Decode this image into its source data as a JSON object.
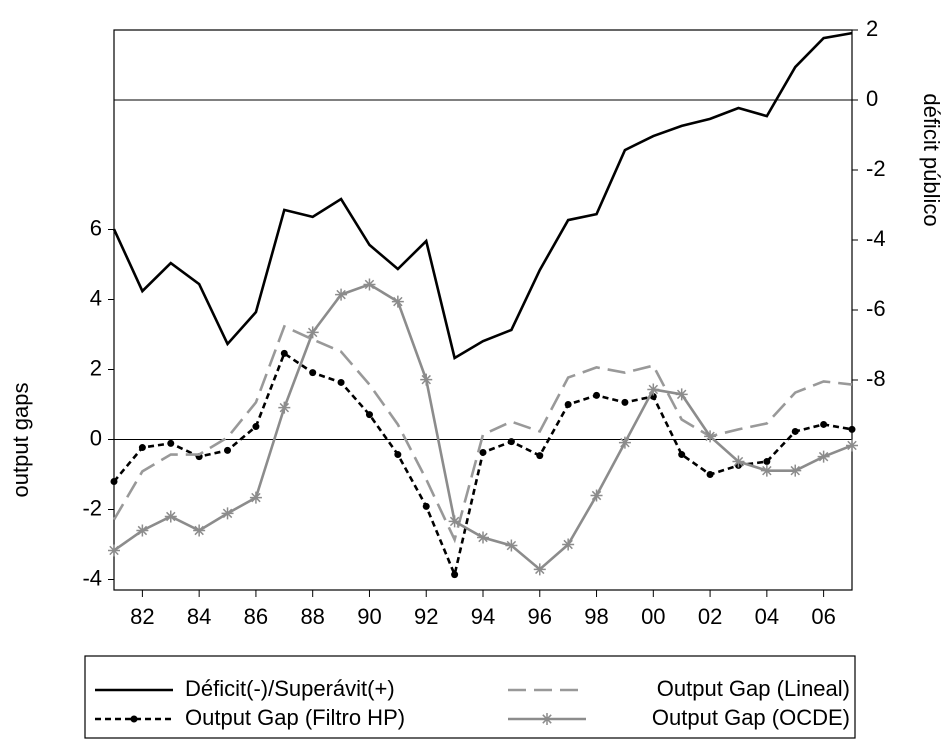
{
  "chart_data": {
    "type": "line",
    "x": [
      1981,
      1982,
      1983,
      1984,
      1985,
      1986,
      1987,
      1988,
      1989,
      1990,
      1991,
      1992,
      1993,
      1994,
      1995,
      1996,
      1997,
      1998,
      1999,
      2000,
      2001,
      2002,
      2003,
      2004,
      2005,
      2006,
      2007
    ],
    "xlim": [
      1981,
      2007
    ],
    "xticks": [
      {
        "value": 1982,
        "label": "82"
      },
      {
        "value": 1984,
        "label": "84"
      },
      {
        "value": 1986,
        "label": "86"
      },
      {
        "value": 1988,
        "label": "88"
      },
      {
        "value": 1990,
        "label": "90"
      },
      {
        "value": 1992,
        "label": "92"
      },
      {
        "value": 1994,
        "label": "94"
      },
      {
        "value": 1996,
        "label": "96"
      },
      {
        "value": 1998,
        "label": "98"
      },
      {
        "value": 2000,
        "label": "00"
      },
      {
        "value": 2002,
        "label": "02"
      },
      {
        "value": 2004,
        "label": "04"
      },
      {
        "value": 2006,
        "label": "06"
      }
    ],
    "ylabel": "output gaps",
    "ylim": [
      -4.3,
      11.7
    ],
    "yticks": [
      -4,
      -2,
      0,
      2,
      4,
      6
    ],
    "y2label": "déficit público",
    "y2lim": [
      -14,
      2
    ],
    "y2ticks": [
      -8,
      -6,
      -4,
      -2,
      0,
      2
    ],
    "zero_lines": true,
    "series": [
      {
        "name": "Déficit(-)/Superávit(+)",
        "color": "#000000",
        "dash": "solid",
        "axis": "y2",
        "values": [
          -3.69,
          -5.46,
          -4.66,
          -5.26,
          -6.97,
          -6.06,
          -3.14,
          -3.34,
          -2.83,
          -4.14,
          -4.83,
          -4.03,
          -7.37,
          -6.89,
          -6.57,
          -4.86,
          -3.43,
          -3.26,
          -1.43,
          -1.03,
          -0.74,
          -0.54,
          -0.23,
          -0.46,
          0.94,
          1.77,
          1.91
        ]
      },
      {
        "name": "Output Gap (Filtro HP)",
        "color": "#000000",
        "dash": "dashed",
        "marker": "dot",
        "values": [
          -1.2,
          -0.23,
          -0.11,
          -0.49,
          -0.31,
          0.37,
          2.46,
          1.91,
          1.63,
          0.71,
          -0.43,
          -1.91,
          -3.86,
          -0.37,
          -0.06,
          -0.46,
          1.0,
          1.26,
          1.06,
          1.23,
          -0.43,
          -1.0,
          -0.74,
          -0.63,
          0.23,
          0.43,
          0.29
        ]
      },
      {
        "name": "Output Gap (Lineal)",
        "color": "#999999",
        "dash": "longdash",
        "values": [
          -2.29,
          -0.91,
          -0.43,
          -0.43,
          0.06,
          1.06,
          3.23,
          2.86,
          2.51,
          1.57,
          0.43,
          -1.14,
          -2.86,
          0.14,
          0.51,
          0.23,
          1.77,
          2.06,
          1.91,
          2.11,
          0.57,
          0.09,
          0.29,
          0.46,
          1.34,
          1.66,
          1.57
        ]
      },
      {
        "name": "Output Gap (OCDE)",
        "color": "#8c8c8c",
        "dash": "solid",
        "marker": "star",
        "values": [
          -3.17,
          -2.6,
          -2.2,
          -2.6,
          -2.11,
          -1.66,
          0.91,
          3.06,
          4.14,
          4.43,
          3.94,
          1.71,
          -2.34,
          -2.8,
          -3.03,
          -3.71,
          -3.0,
          -1.6,
          -0.09,
          1.43,
          1.29,
          0.09,
          -0.63,
          -0.89,
          -0.89,
          -0.49,
          -0.17
        ]
      }
    ]
  }
}
